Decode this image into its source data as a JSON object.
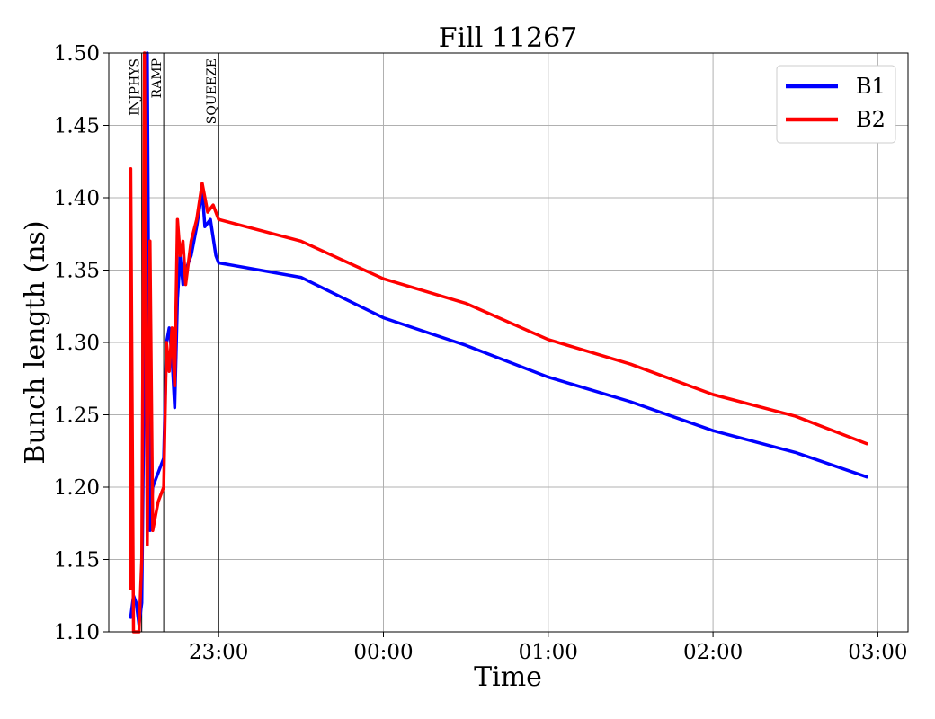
{
  "chart_data": {
    "type": "line",
    "title": "Fill 11267",
    "xlabel": "Time",
    "ylabel": "Bunch length (ns)",
    "ylim": [
      1.1,
      1.5
    ],
    "xlim": [
      "22:20",
      "03:11"
    ],
    "y_ticks": [
      "1.10",
      "1.15",
      "1.20",
      "1.25",
      "1.30",
      "1.35",
      "1.40",
      "1.45",
      "1.50"
    ],
    "x_ticks": [
      "23:00",
      "00:00",
      "01:00",
      "02:00",
      "03:00"
    ],
    "grid": true,
    "legend_position": "top-right",
    "phase_markers": [
      {
        "label": "INJPHYS",
        "time": "22:32"
      },
      {
        "label": "RAMP",
        "time": "22:40"
      },
      {
        "label": "SQUEEZE",
        "time": "23:00"
      }
    ],
    "series": [
      {
        "name": "B1",
        "color": "#0000ff",
        "points": [
          [
            "22:28",
            1.11
          ],
          [
            "22:29",
            1.125
          ],
          [
            "22:30",
            1.12
          ],
          [
            "22:31",
            1.105
          ],
          [
            "22:32",
            1.12
          ],
          [
            "22:33",
            1.3
          ],
          [
            "22:34",
            1.5
          ],
          [
            "22:35",
            1.17
          ],
          [
            "22:36",
            1.2
          ],
          [
            "22:37",
            1.205
          ],
          [
            "22:38",
            1.21
          ],
          [
            "22:39",
            1.215
          ],
          [
            "22:40",
            1.22
          ],
          [
            "22:41",
            1.3
          ],
          [
            "22:42",
            1.31
          ],
          [
            "22:43",
            1.29
          ],
          [
            "22:44",
            1.255
          ],
          [
            "22:45",
            1.33
          ],
          [
            "22:46",
            1.36
          ],
          [
            "22:47",
            1.34
          ],
          [
            "22:48",
            1.35
          ],
          [
            "22:50",
            1.36
          ],
          [
            "22:52",
            1.38
          ],
          [
            "22:54",
            1.405
          ],
          [
            "22:55",
            1.38
          ],
          [
            "22:57",
            1.385
          ],
          [
            "22:59",
            1.36
          ],
          [
            "23:00",
            1.355
          ],
          [
            "23:30",
            1.345
          ],
          [
            "00:00",
            1.317
          ],
          [
            "00:30",
            1.298
          ],
          [
            "01:00",
            1.276
          ],
          [
            "01:30",
            1.259
          ],
          [
            "02:00",
            1.239
          ],
          [
            "02:30",
            1.224
          ],
          [
            "02:56",
            1.207
          ]
        ]
      },
      {
        "name": "B2",
        "color": "#ff0000",
        "points": [
          [
            "22:28",
            1.13
          ],
          [
            "22:28",
            1.42
          ],
          [
            "22:29",
            1.1
          ],
          [
            "22:30",
            1.1
          ],
          [
            "22:31",
            1.1
          ],
          [
            "22:32",
            1.15
          ],
          [
            "22:33",
            1.5
          ],
          [
            "22:34",
            1.16
          ],
          [
            "22:35",
            1.37
          ],
          [
            "22:36",
            1.17
          ],
          [
            "22:37",
            1.18
          ],
          [
            "22:38",
            1.19
          ],
          [
            "22:39",
            1.195
          ],
          [
            "22:40",
            1.2
          ],
          [
            "22:41",
            1.3
          ],
          [
            "22:42",
            1.28
          ],
          [
            "22:43",
            1.31
          ],
          [
            "22:44",
            1.27
          ],
          [
            "22:45",
            1.385
          ],
          [
            "22:46",
            1.36
          ],
          [
            "22:47",
            1.37
          ],
          [
            "22:48",
            1.34
          ],
          [
            "22:50",
            1.37
          ],
          [
            "22:52",
            1.385
          ],
          [
            "22:54",
            1.41
          ],
          [
            "22:56",
            1.39
          ],
          [
            "22:58",
            1.395
          ],
          [
            "23:00",
            1.385
          ],
          [
            "23:30",
            1.37
          ],
          [
            "00:00",
            1.344
          ],
          [
            "00:30",
            1.327
          ],
          [
            "01:00",
            1.302
          ],
          [
            "01:30",
            1.285
          ],
          [
            "02:00",
            1.264
          ],
          [
            "02:30",
            1.249
          ],
          [
            "02:56",
            1.23
          ]
        ]
      }
    ]
  }
}
